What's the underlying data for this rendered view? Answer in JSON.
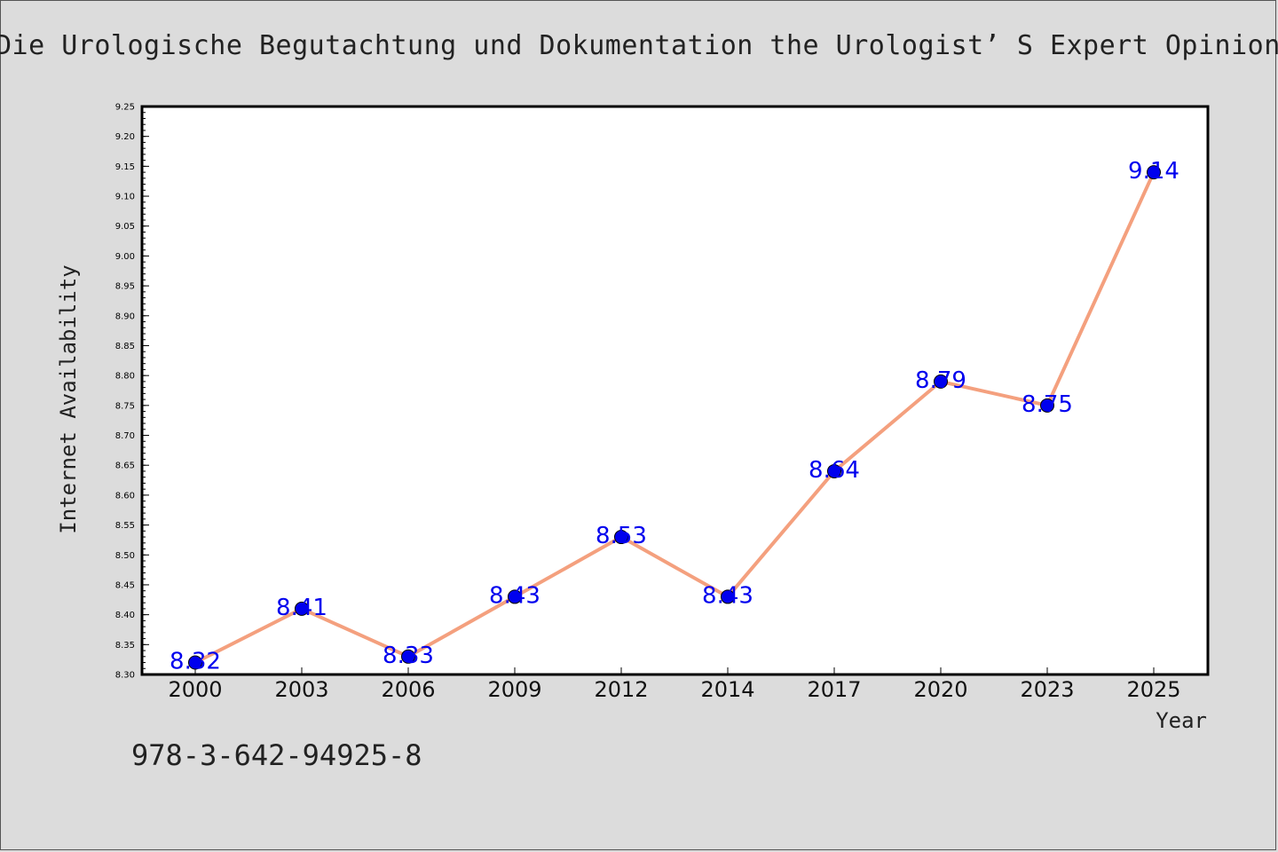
{
  "title": "Die Urologische Begutachtung und Dokumentation the Urologist’ S Expert Opinion and Documentation",
  "footer_code": "978-3-642-94925-8",
  "colors": {
    "background": "#dcdcdc",
    "line": "#f4a07e",
    "marker": "#0000ee",
    "label": "#0000ee"
  },
  "chart_data": {
    "type": "line",
    "xlabel": "Year",
    "ylabel": "Internet Availability",
    "categories": [
      "2000",
      "2003",
      "2006",
      "2009",
      "2012",
      "2014",
      "2017",
      "2020",
      "2023",
      "2025"
    ],
    "series": [
      {
        "values": [
          8.32,
          8.41,
          8.33,
          8.43,
          8.53,
          8.43,
          8.64,
          8.79,
          8.75,
          9.14
        ],
        "labels": [
          "8.32",
          "8.41",
          "8.33",
          "8.43",
          "8.53",
          "8.43",
          "8.64",
          "8.79",
          "8.75",
          "9.14"
        ]
      }
    ],
    "ylim": [
      8.3,
      9.25
    ],
    "yticks": [
      "8.30",
      "8.35",
      "8.40",
      "8.45",
      "8.50",
      "8.55",
      "8.60",
      "8.65",
      "8.70",
      "8.75",
      "8.80",
      "8.85",
      "8.90",
      "8.95",
      "9.00",
      "9.05",
      "9.10",
      "9.15",
      "9.20",
      "9.25"
    ],
    "grid": false,
    "legend": "none"
  }
}
